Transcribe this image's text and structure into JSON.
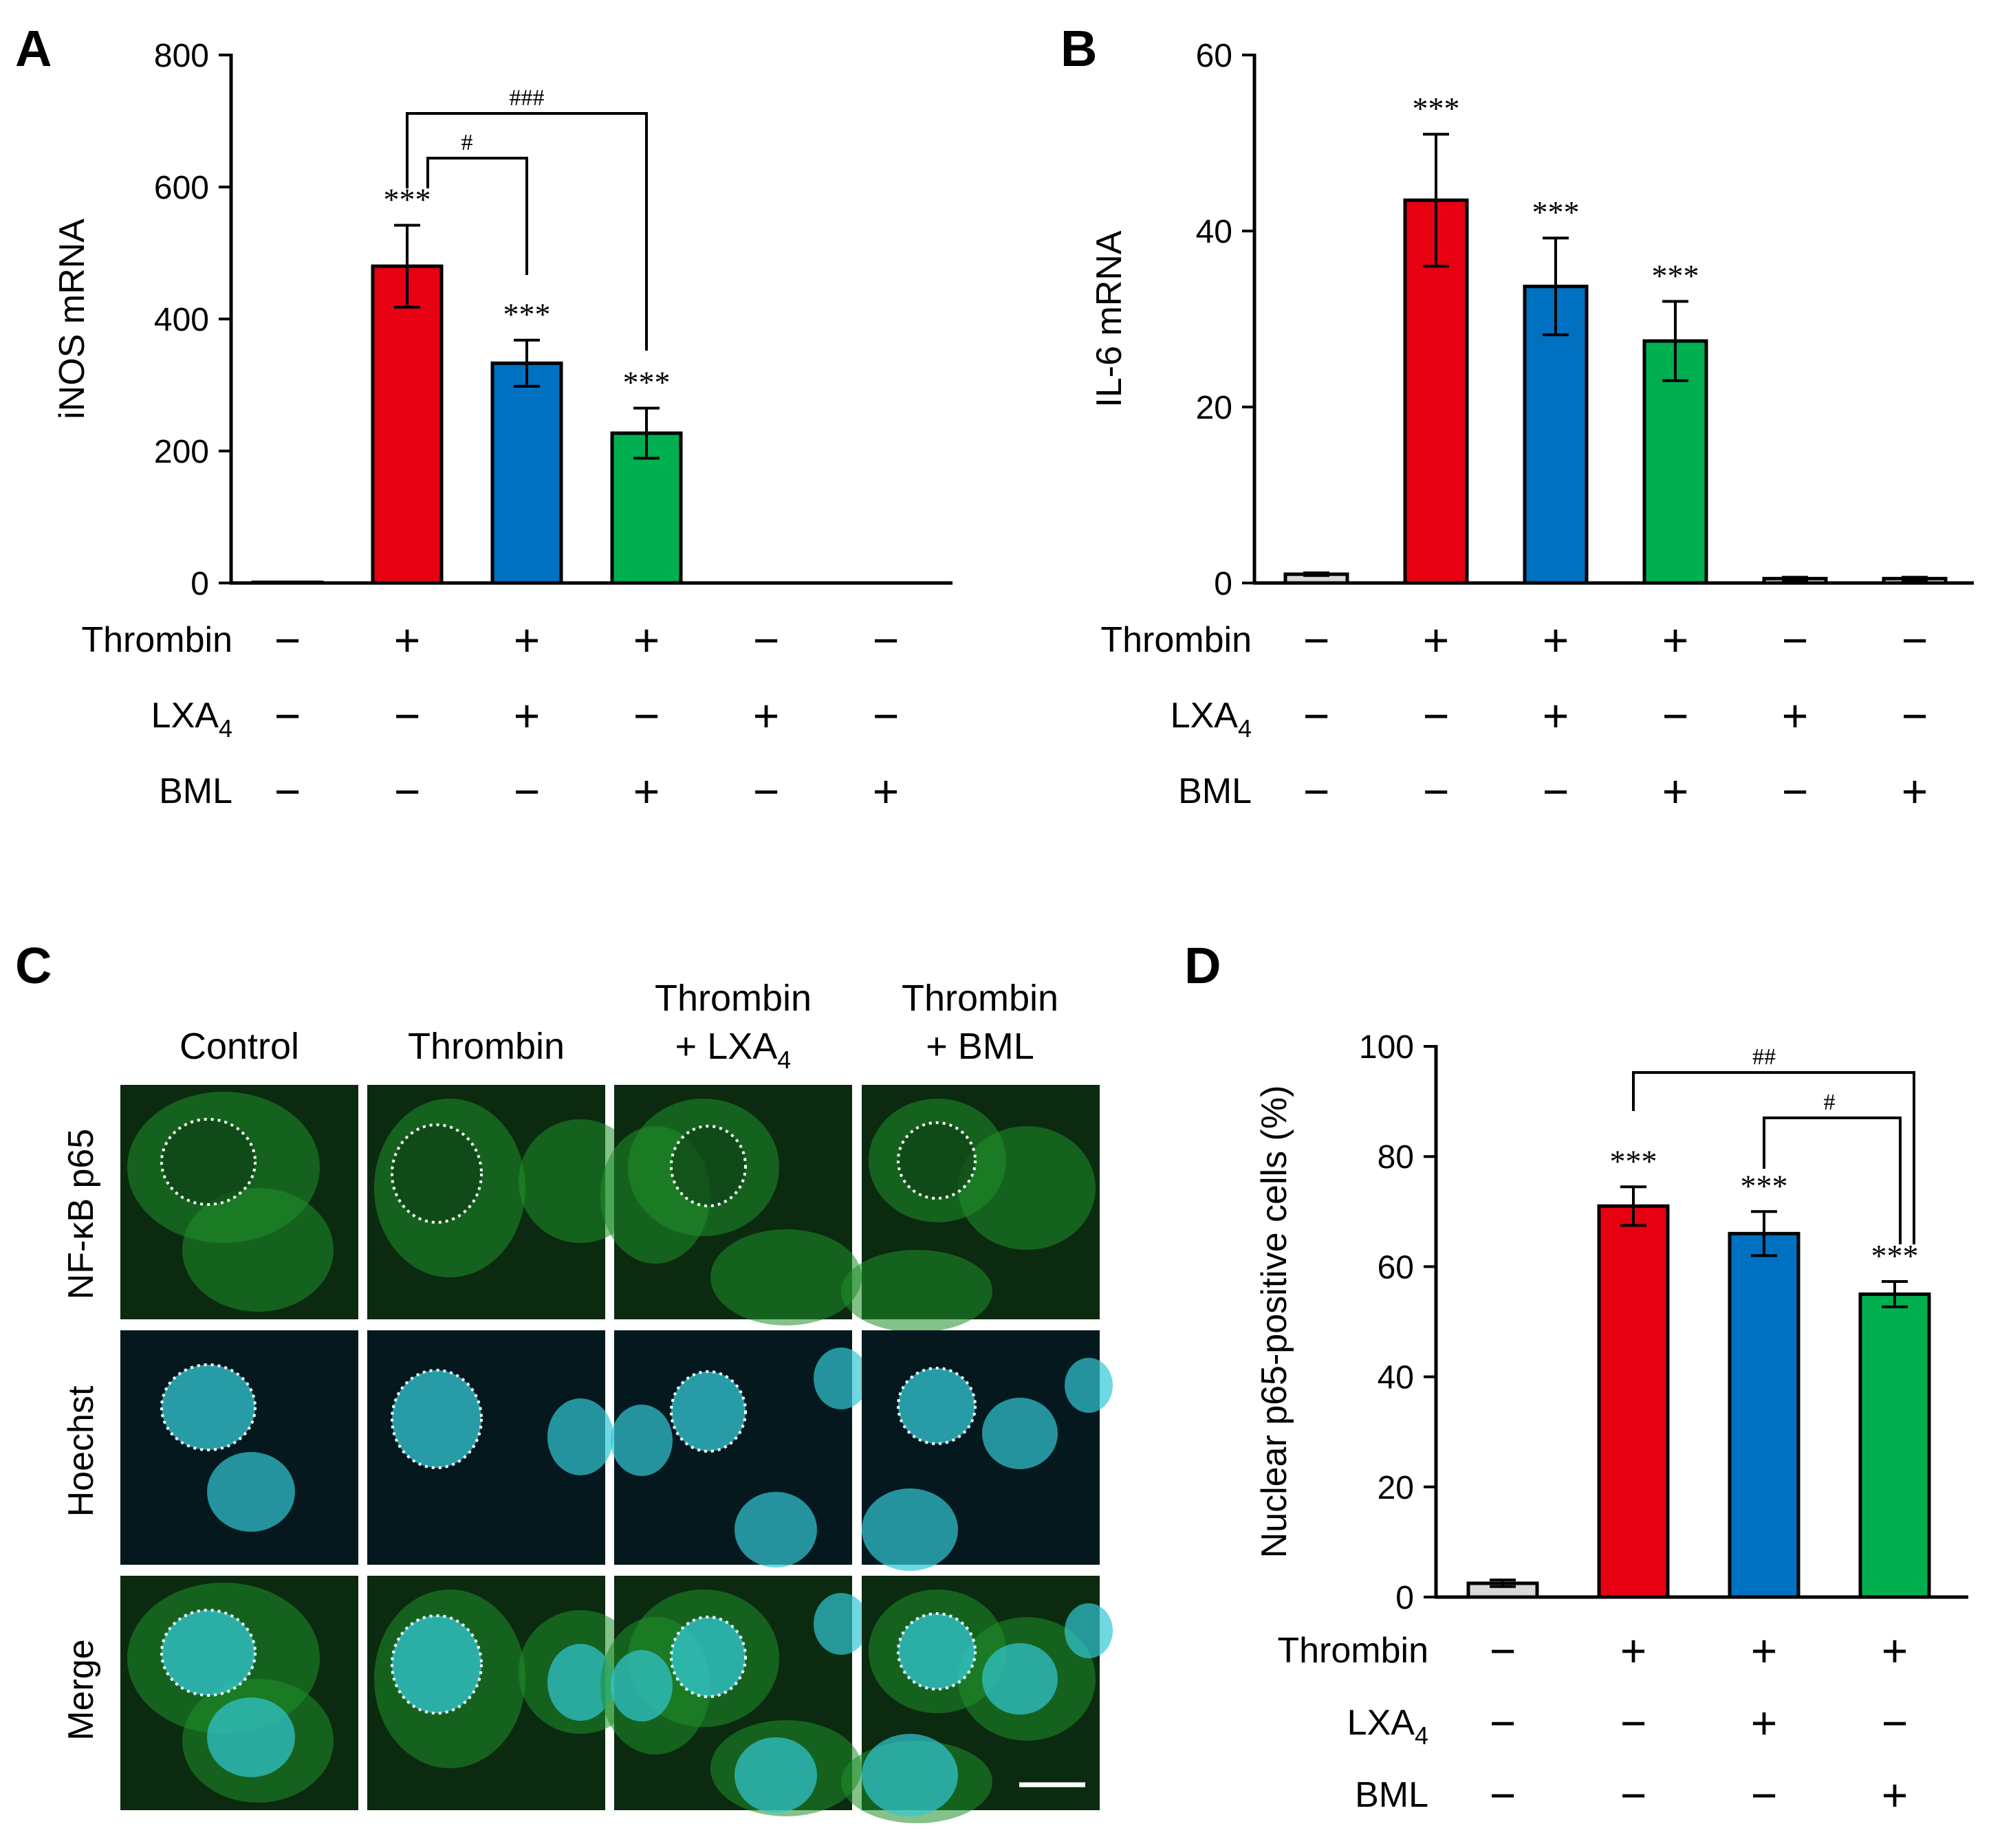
{
  "colors": {
    "control": "#d9d9d9",
    "thrombin": "#e60012",
    "thrombin_lxa4": "#0070c0",
    "thrombin_bml": "#00b050",
    "p65_green": "#1f8f2a",
    "hoechst_cyan": "#33c8d4",
    "micro_bg_green": "#0b2a10",
    "micro_bg_cyan": "#04181e"
  },
  "treatment_labels": {
    "thrombin": "Thrombin",
    "lxa4_base": "LXA",
    "lxa4_sub": "4",
    "bml": "BML",
    "plus": "+",
    "minus": "−"
  },
  "chart_data": [
    {
      "panel": "A",
      "type": "bar",
      "ylabel": "iNOS mRNA",
      "ylim": [
        0,
        800
      ],
      "yticks": [
        "0",
        "200",
        "400",
        "600",
        "800"
      ],
      "categories": [
        "Control",
        "Thrombin",
        "Thrombin + LXA4",
        "Thrombin + BML",
        "LXA4",
        "BML"
      ],
      "values": [
        1,
        480,
        333,
        227,
        0,
        0
      ],
      "errors": [
        0,
        62,
        35,
        38,
        0,
        0
      ],
      "significance": [
        "",
        "***",
        "***",
        "***",
        "",
        ""
      ],
      "comparisons": [
        {
          "from": 1,
          "to": 2,
          "label": "#"
        },
        {
          "from": 1,
          "to": 3,
          "label": "###"
        }
      ],
      "thrombin": [
        "−",
        "+",
        "+",
        "+",
        "−",
        "−"
      ],
      "lxa4": [
        "−",
        "−",
        "+",
        "−",
        "+",
        "−"
      ],
      "bml": [
        "−",
        "−",
        "−",
        "+",
        "−",
        "+"
      ]
    },
    {
      "panel": "B",
      "type": "bar",
      "ylabel": "IL-6 mRNA",
      "ylim": [
        0,
        60
      ],
      "yticks": [
        "0",
        "20",
        "40",
        "60"
      ],
      "categories": [
        "Control",
        "Thrombin",
        "Thrombin + LXA4",
        "Thrombin + BML",
        "LXA4",
        "BML"
      ],
      "values": [
        1,
        43.5,
        33.7,
        27.5,
        0.5,
        0.5
      ],
      "errors": [
        0.15,
        7.5,
        5.5,
        4.5,
        0.15,
        0.15
      ],
      "significance": [
        "",
        "***",
        "***",
        "***",
        "",
        ""
      ],
      "comparisons": [],
      "thrombin": [
        "−",
        "+",
        "+",
        "+",
        "−",
        "−"
      ],
      "lxa4": [
        "−",
        "−",
        "+",
        "−",
        "+",
        "−"
      ],
      "bml": [
        "−",
        "−",
        "−",
        "+",
        "−",
        "+"
      ]
    },
    {
      "panel": "D",
      "type": "bar",
      "ylabel": "Nuclear p65-positive cells (%)",
      "ylim": [
        0,
        100
      ],
      "yticks": [
        "0",
        "20",
        "40",
        "60",
        "80",
        "100"
      ],
      "categories": [
        "Control",
        "Thrombin",
        "Thrombin + LXA4",
        "Thrombin + BML"
      ],
      "values": [
        2.5,
        71,
        66,
        55
      ],
      "errors": [
        0.6,
        3.5,
        4,
        2.3
      ],
      "significance": [
        "",
        "***",
        "***",
        "***"
      ],
      "comparisons": [
        {
          "from": 1,
          "to": 3,
          "label": "##"
        },
        {
          "from": 2,
          "to": 3,
          "label": "#"
        }
      ],
      "thrombin": [
        "−",
        "+",
        "+",
        "+"
      ],
      "lxa4": [
        "−",
        "−",
        "+",
        "−"
      ],
      "bml": [
        "−",
        "−",
        "−",
        "+"
      ]
    }
  ],
  "panel_c": {
    "letter": "C",
    "columns": [
      {
        "line1": "Control",
        "line2": "",
        "line2_sub": ""
      },
      {
        "line1": "Thrombin",
        "line2": "",
        "line2_sub": ""
      },
      {
        "line1": "Thrombin",
        "line2": "+ LXA",
        "line2_sub": "4"
      },
      {
        "line1": "Thrombin",
        "line2": "+ BML",
        "line2_sub": ""
      }
    ],
    "rows": [
      "NF-κB p65",
      "Hoechst",
      "Merge"
    ]
  }
}
